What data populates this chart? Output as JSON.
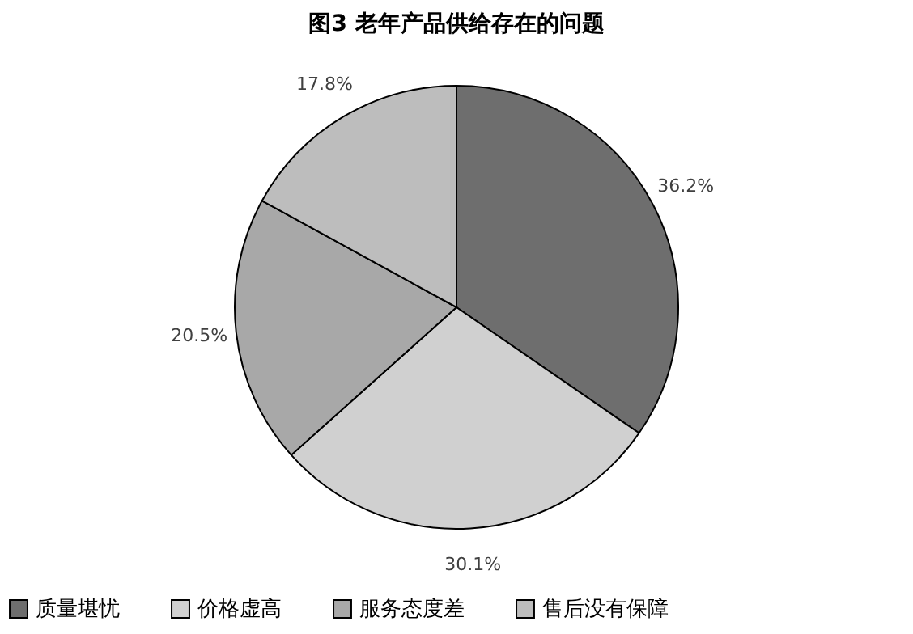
{
  "chart_data": {
    "type": "pie",
    "title": "图3  老年产品供给存在的问题",
    "categories": [
      "质量堪忧",
      "价格虚高",
      "服务态度差",
      "售后没有保障"
    ],
    "values": [
      36.2,
      30.1,
      20.5,
      17.8
    ],
    "value_labels": [
      "36.2%",
      "30.1%",
      "20.5%",
      "17.8%"
    ],
    "colors": [
      "#6e6e6e",
      "#d0d0d0",
      "#a8a8a8",
      "#bdbdbd"
    ],
    "legend": "bottom"
  }
}
